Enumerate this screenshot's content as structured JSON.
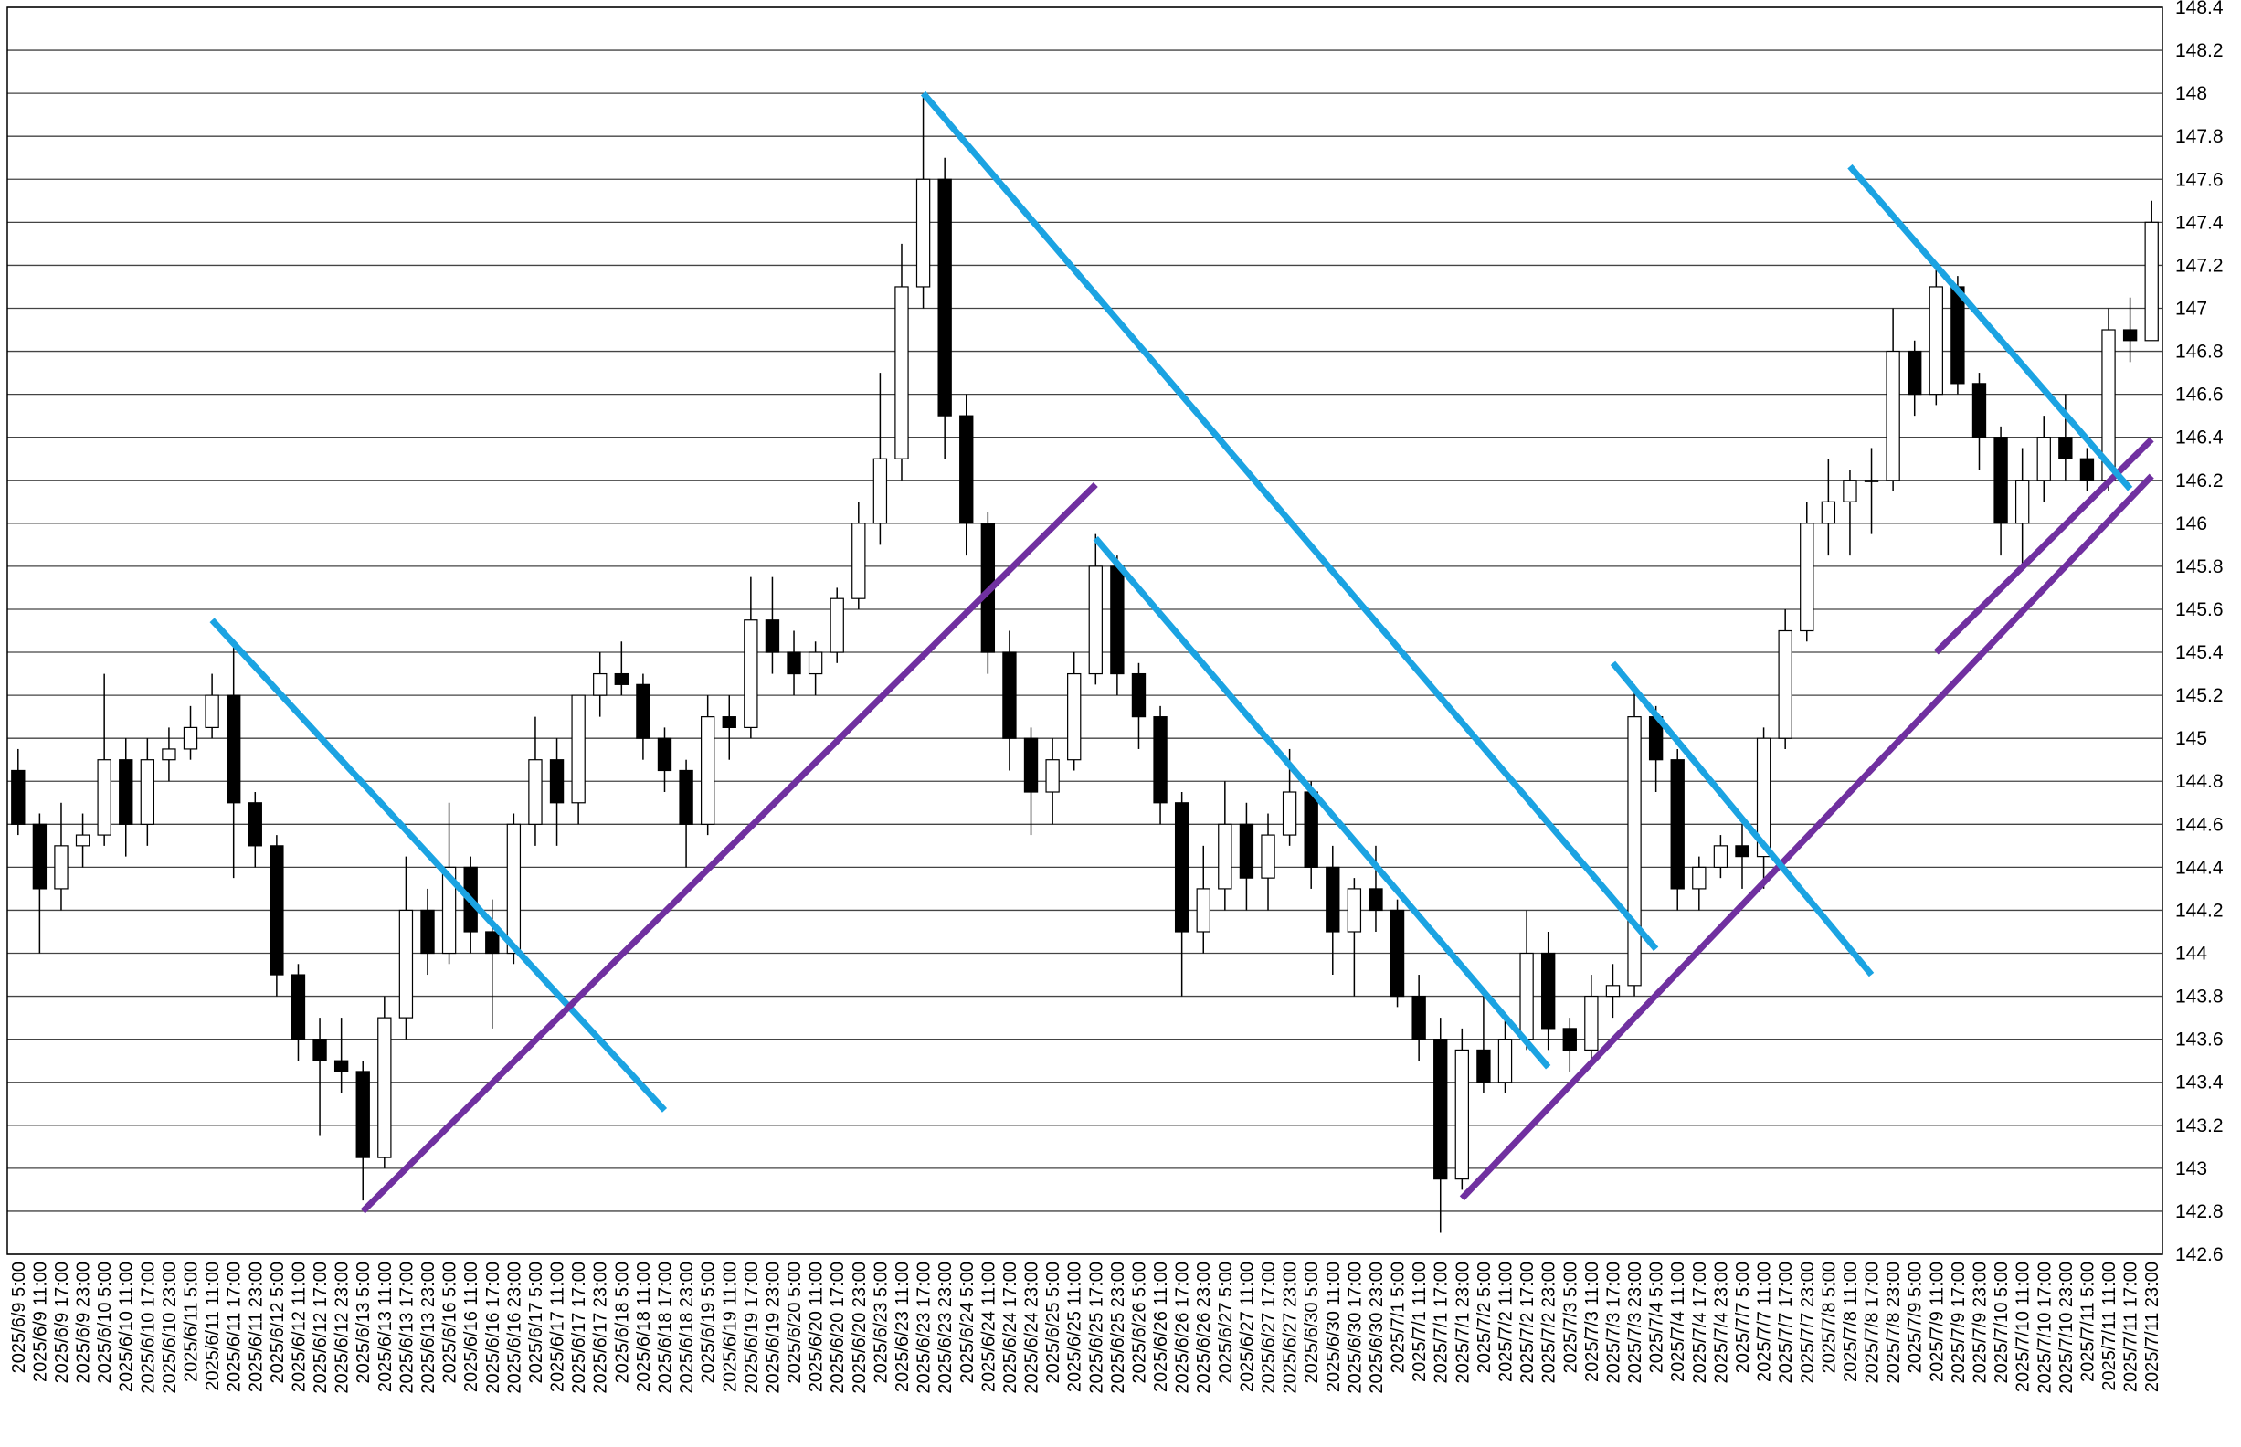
{
  "chart_data": {
    "type": "candlestick",
    "categories": [
      "2025/6/9 5:00",
      "2025/6/9 11:00",
      "2025/6/9 17:00",
      "2025/6/9 23:00",
      "2025/6/10 5:00",
      "2025/6/10 11:00",
      "2025/6/10 17:00",
      "2025/6/10 23:00",
      "2025/6/11 5:00",
      "2025/6/11 11:00",
      "2025/6/11 17:00",
      "2025/6/11 23:00",
      "2025/6/12 5:00",
      "2025/6/12 11:00",
      "2025/6/12 17:00",
      "2025/6/12 23:00",
      "2025/6/13 5:00",
      "2025/6/13 11:00",
      "2025/6/13 17:00",
      "2025/6/13 23:00",
      "2025/6/16 5:00",
      "2025/6/16 11:00",
      "2025/6/16 17:00",
      "2025/6/16 23:00",
      "2025/6/17 5:00",
      "2025/6/17 11:00",
      "2025/6/17 17:00",
      "2025/6/17 23:00",
      "2025/6/18 5:00",
      "2025/6/18 11:00",
      "2025/6/18 17:00",
      "2025/6/18 23:00",
      "2025/6/19 5:00",
      "2025/6/19 11:00",
      "2025/6/19 17:00",
      "2025/6/19 23:00",
      "2025/6/20 5:00",
      "2025/6/20 11:00",
      "2025/6/20 17:00",
      "2025/6/20 23:00",
      "2025/6/23 5:00",
      "2025/6/23 11:00",
      "2025/6/23 17:00",
      "2025/6/23 23:00",
      "2025/6/24 5:00",
      "2025/6/24 11:00",
      "2025/6/24 17:00",
      "2025/6/24 23:00",
      "2025/6/25 5:00",
      "2025/6/25 11:00",
      "2025/6/25 17:00",
      "2025/6/25 23:00",
      "2025/6/26 5:00",
      "2025/6/26 11:00",
      "2025/6/26 17:00",
      "2025/6/26 23:00",
      "2025/6/27 5:00",
      "2025/6/27 11:00",
      "2025/6/27 17:00",
      "2025/6/27 23:00",
      "2025/6/30 5:00",
      "2025/6/30 11:00",
      "2025/6/30 17:00",
      "2025/6/30 23:00",
      "2025/7/1 5:00",
      "2025/7/1 11:00",
      "2025/7/1 17:00",
      "2025/7/1 23:00",
      "2025/7/2 5:00",
      "2025/7/2 11:00",
      "2025/7/2 17:00",
      "2025/7/2 23:00",
      "2025/7/3 5:00",
      "2025/7/3 11:00",
      "2025/7/3 17:00",
      "2025/7/3 23:00",
      "2025/7/4 5:00",
      "2025/7/4 11:00",
      "2025/7/4 17:00",
      "2025/7/4 23:00",
      "2025/7/7 5:00",
      "2025/7/7 11:00",
      "2025/7/7 17:00",
      "2025/7/7 23:00",
      "2025/7/8 5:00",
      "2025/7/8 11:00",
      "2025/7/8 17:00",
      "2025/7/8 23:00",
      "2025/7/9 5:00",
      "2025/7/9 11:00",
      "2025/7/9 17:00",
      "2025/7/9 23:00",
      "2025/7/10 5:00",
      "2025/7/10 11:00",
      "2025/7/10 17:00",
      "2025/7/10 23:00",
      "2025/7/11 5:00",
      "2025/7/11 11:00",
      "2025/7/11 17:00",
      "2025/7/11 23:00"
    ],
    "open": [
      144.85,
      144.6,
      144.3,
      144.5,
      144.55,
      144.9,
      144.6,
      144.9,
      144.95,
      145.05,
      145.2,
      144.7,
      144.5,
      143.9,
      143.6,
      143.5,
      143.45,
      143.05,
      143.7,
      144.2,
      144.0,
      144.4,
      144.1,
      144.0,
      144.6,
      144.9,
      144.7,
      145.2,
      145.3,
      145.25,
      145.0,
      144.85,
      144.6,
      145.1,
      145.05,
      145.55,
      145.4,
      145.3,
      145.4,
      145.65,
      146.0,
      146.3,
      147.1,
      147.6,
      146.5,
      146.0,
      145.4,
      145.0,
      144.75,
      144.9,
      145.3,
      145.8,
      145.3,
      145.1,
      144.7,
      144.1,
      144.3,
      144.6,
      144.35,
      144.55,
      144.75,
      144.4,
      144.1,
      144.3,
      144.2,
      143.8,
      143.6,
      142.95,
      143.55,
      143.4,
      143.6,
      144.0,
      143.65,
      143.55,
      143.8,
      143.85,
      145.1,
      144.9,
      144.3,
      144.4,
      144.5,
      144.45,
      145.0,
      145.5,
      146.0,
      146.1,
      146.2,
      146.2,
      146.8,
      146.6,
      147.1,
      146.65,
      146.4,
      146.0,
      146.2,
      146.4,
      146.3,
      146.2,
      146.9,
      146.85
    ],
    "high": [
      144.95,
      144.65,
      144.7,
      144.65,
      145.3,
      145.0,
      145.0,
      145.05,
      145.15,
      145.3,
      145.45,
      144.75,
      144.55,
      143.95,
      143.7,
      143.7,
      143.5,
      143.8,
      144.45,
      144.3,
      144.7,
      144.45,
      144.25,
      144.65,
      145.1,
      145.0,
      145.2,
      145.4,
      145.45,
      145.3,
      145.05,
      144.9,
      145.2,
      145.2,
      145.75,
      145.75,
      145.5,
      145.45,
      145.7,
      146.1,
      146.7,
      147.3,
      148.0,
      147.7,
      146.6,
      146.05,
      145.5,
      145.05,
      145.0,
      145.4,
      145.95,
      145.85,
      145.35,
      145.15,
      144.75,
      144.5,
      144.8,
      144.7,
      144.65,
      144.95,
      144.8,
      144.5,
      144.35,
      144.5,
      144.25,
      143.9,
      143.7,
      143.65,
      143.8,
      143.7,
      144.2,
      144.1,
      143.7,
      143.9,
      143.95,
      145.25,
      145.15,
      144.95,
      144.45,
      144.55,
      144.6,
      145.05,
      145.6,
      146.1,
      146.3,
      146.25,
      146.35,
      147.0,
      146.85,
      147.2,
      147.15,
      146.7,
      146.45,
      146.35,
      146.5,
      146.6,
      146.35,
      147.0,
      147.05,
      147.5
    ],
    "low": [
      144.55,
      144.0,
      144.2,
      144.4,
      144.5,
      144.45,
      144.5,
      144.8,
      144.9,
      145.0,
      144.35,
      144.4,
      143.8,
      143.5,
      143.15,
      143.35,
      142.85,
      143.0,
      143.6,
      143.9,
      143.95,
      144.0,
      143.65,
      143.95,
      144.5,
      144.5,
      144.6,
      145.1,
      145.2,
      144.9,
      144.75,
      144.4,
      144.55,
      144.9,
      145.0,
      145.3,
      145.2,
      145.2,
      145.35,
      145.6,
      145.9,
      146.2,
      147.0,
      146.3,
      145.85,
      145.3,
      144.85,
      144.55,
      144.6,
      144.85,
      145.25,
      145.2,
      144.95,
      144.6,
      143.8,
      144.0,
      144.2,
      144.2,
      144.2,
      144.5,
      144.3,
      143.9,
      143.8,
      144.1,
      143.75,
      143.5,
      142.7,
      142.9,
      143.35,
      143.35,
      143.55,
      143.55,
      143.45,
      143.5,
      143.7,
      143.8,
      144.75,
      144.2,
      144.2,
      144.35,
      144.3,
      144.3,
      144.95,
      145.45,
      145.85,
      145.85,
      145.95,
      146.15,
      146.5,
      146.55,
      146.6,
      146.25,
      145.85,
      145.8,
      146.1,
      146.2,
      146.15,
      146.15,
      146.75,
      146.85
    ],
    "close": [
      144.6,
      144.3,
      144.5,
      144.55,
      144.9,
      144.6,
      144.9,
      144.95,
      145.05,
      145.2,
      144.7,
      144.5,
      143.9,
      143.6,
      143.5,
      143.45,
      143.05,
      143.7,
      144.2,
      144.0,
      144.4,
      144.1,
      144.0,
      144.6,
      144.9,
      144.7,
      145.2,
      145.3,
      145.25,
      145.0,
      144.85,
      144.6,
      145.1,
      145.05,
      145.55,
      145.4,
      145.3,
      145.4,
      145.65,
      146.0,
      146.3,
      147.1,
      147.6,
      146.5,
      146.0,
      145.4,
      145.0,
      144.75,
      144.9,
      145.3,
      145.8,
      145.3,
      145.1,
      144.7,
      144.1,
      144.3,
      144.6,
      144.35,
      144.55,
      144.75,
      144.4,
      144.1,
      144.3,
      144.2,
      143.8,
      143.6,
      142.95,
      143.55,
      143.4,
      143.6,
      144.0,
      143.65,
      143.55,
      143.8,
      143.85,
      145.1,
      144.9,
      144.3,
      144.4,
      144.5,
      144.45,
      145.0,
      145.5,
      146.0,
      146.1,
      146.2,
      146.2,
      146.8,
      146.6,
      147.1,
      146.65,
      146.4,
      146.0,
      146.2,
      146.4,
      146.3,
      146.2,
      146.9,
      146.85,
      147.4
    ],
    "up_color": "#ffffff",
    "down_color": "#000000",
    "ylim": [
      142.6,
      148.4
    ],
    "yticks": [
      142.6,
      142.8,
      143,
      143.2,
      143.4,
      143.6,
      143.8,
      144,
      144.2,
      144.4,
      144.6,
      144.8,
      145,
      145.2,
      145.4,
      145.6,
      145.8,
      146,
      146.2,
      146.4,
      146.6,
      146.8,
      147,
      147.2,
      147.4,
      147.6,
      147.8,
      148,
      148.2,
      148.4
    ],
    "grid": true,
    "trendlines": [
      {
        "color": "#1ba3e2",
        "from": {
          "x": "2025/6/11 11:00",
          "y": 145.55
        },
        "to": {
          "x": "2025/6/18 17:00",
          "y": 143.27
        }
      },
      {
        "color": "#7030a0",
        "from": {
          "x": "2025/6/13 5:00",
          "y": 142.8
        },
        "to": {
          "x": "2025/6/25 17:00",
          "y": 146.18
        }
      },
      {
        "color": "#1ba3e2",
        "from": {
          "x": "2025/6/23 17:00",
          "y": 148.0
        },
        "to": {
          "x": "2025/7/4 5:00",
          "y": 144.02
        }
      },
      {
        "color": "#1ba3e2",
        "from": {
          "x": "2025/6/25 17:00",
          "y": 145.93
        },
        "to": {
          "x": "2025/7/2 23:00",
          "y": 143.47
        }
      },
      {
        "color": "#7030a0",
        "from": {
          "x": "2025/7/1 23:00",
          "y": 142.86
        },
        "to": {
          "x": "2025/7/11 23:00",
          "y": 146.22
        }
      },
      {
        "color": "#1ba3e2",
        "from": {
          "x": "2025/7/3 17:00",
          "y": 145.35
        },
        "to": {
          "x": "2025/7/8 17:00",
          "y": 143.9
        }
      },
      {
        "color": "#7030a0",
        "from": {
          "x": "2025/7/9 11:00",
          "y": 145.4
        },
        "to": {
          "x": "2025/7/11 23:00",
          "y": 146.39
        }
      },
      {
        "color": "#1ba3e2",
        "from": {
          "x": "2025/7/8 11:00",
          "y": 147.66
        },
        "to": {
          "x": "2025/7/11 17:00",
          "y": 146.16
        }
      }
    ]
  }
}
